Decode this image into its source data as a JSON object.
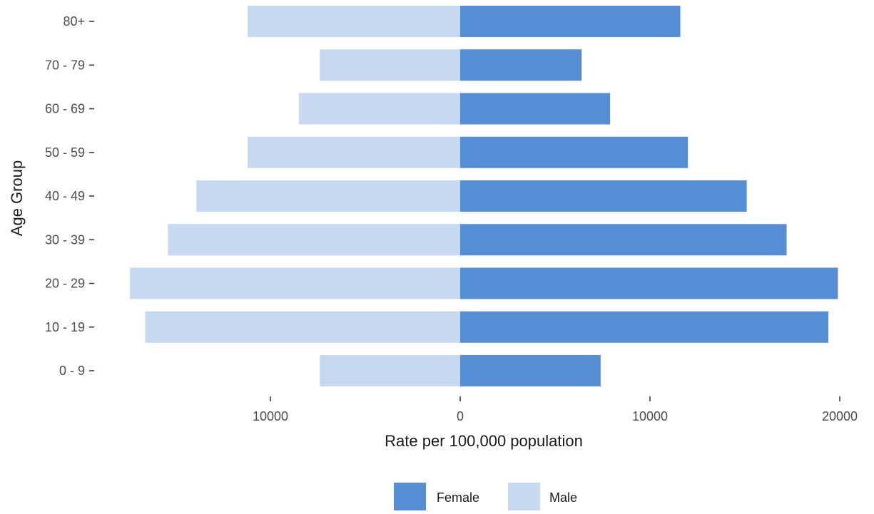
{
  "chart_data": {
    "type": "bar",
    "orientation": "horizontal",
    "layout": "population-pyramid",
    "categories": [
      "0 - 9",
      "10 - 19",
      "20 - 29",
      "30 - 39",
      "40 - 49",
      "50 - 59",
      "60 - 69",
      "70 - 79",
      "80+"
    ],
    "series": [
      {
        "name": "Female",
        "color": "#558ED5",
        "values": [
          7400,
          19400,
          19900,
          17200,
          15100,
          12000,
          7900,
          6400,
          11600
        ]
      },
      {
        "name": "Male",
        "color": "#C6D9F1",
        "values": [
          7400,
          16600,
          17400,
          15400,
          13900,
          11200,
          8500,
          7400,
          11200
        ]
      }
    ],
    "xlabel": "Rate per 100,000 population",
    "ylabel": "Age Group",
    "xlim": [
      -17500,
      20300
    ],
    "x_ticks": [
      {
        "value": -10000,
        "label": "10000"
      },
      {
        "value": 0,
        "label": "0"
      },
      {
        "value": 10000,
        "label": "10000"
      },
      {
        "value": 20000,
        "label": "20000"
      }
    ],
    "grid": false,
    "legend": {
      "position": "bottom",
      "entries": [
        "Female",
        "Male"
      ]
    }
  }
}
